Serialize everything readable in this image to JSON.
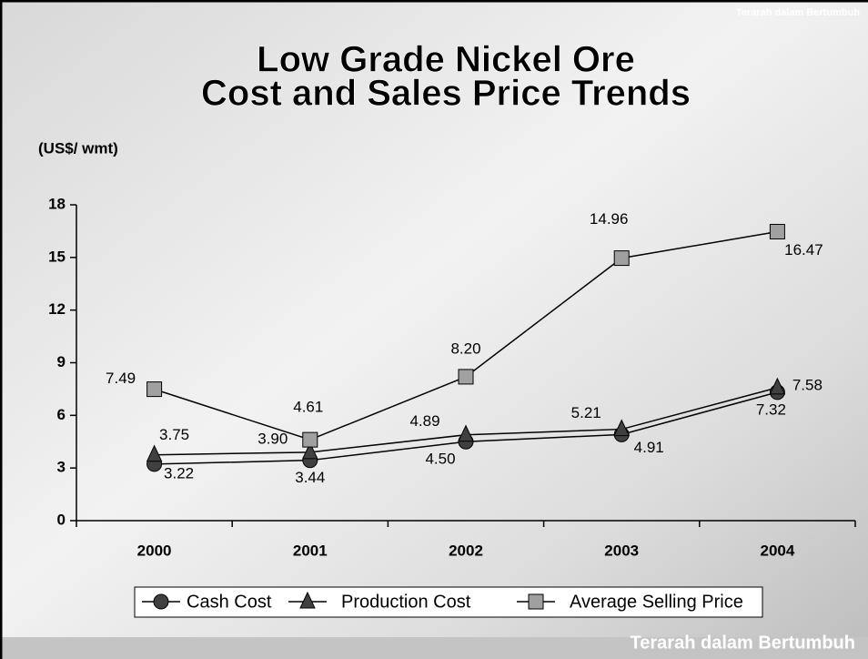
{
  "slogan_top": "Terarah dalam Bertumbuh",
  "slogan_bottom": "Terarah dalam Bertumbuh",
  "chart_data": {
    "type": "line",
    "title": [
      "Low Grade Nickel Ore",
      "Cost and Sales Price Trends"
    ],
    "y_label": "(US$/ wmt)",
    "categories": [
      "2000",
      "2001",
      "2002",
      "2003",
      "2004"
    ],
    "ylim": [
      0,
      18
    ],
    "yticks": [
      0,
      3,
      6,
      9,
      12,
      15,
      18
    ],
    "legend": "bottom",
    "series": [
      {
        "name": "Cash Cost",
        "marker": "circle",
        "color": "#404040",
        "values": [
          3.22,
          3.44,
          4.5,
          4.91,
          7.32
        ],
        "value_labels": [
          "3.22",
          "3.44",
          "4.50",
          "4.91",
          "7.32"
        ]
      },
      {
        "name": "Production Cost",
        "marker": "triangle",
        "color": "#404040",
        "values": [
          3.75,
          3.9,
          4.89,
          5.21,
          7.58
        ],
        "value_labels": [
          "3.75",
          "3.90",
          "4.89",
          "5.21",
          "7.58"
        ]
      },
      {
        "name": "Average Selling Price",
        "marker": "square",
        "color": "#a0a0a0",
        "values": [
          7.49,
          4.61,
          8.2,
          14.96,
          16.47
        ],
        "value_labels": [
          "7.49",
          "4.61",
          "8.20",
          "14.96",
          "16.47"
        ]
      }
    ]
  }
}
